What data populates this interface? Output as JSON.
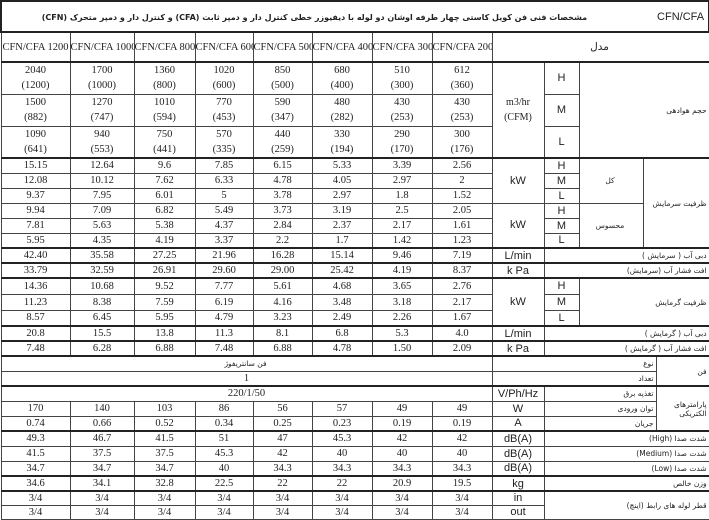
{
  "brand": "CFN/CFA",
  "title": "مشخصات فنی فن کویل کاستی چهار طرفه اوشان دو لوله با دیفیوزر خطی کنترل دار و دمپر ثابت (CFA) و کنترل دار و دمپر متحرک (CFN)",
  "model_label": "مدل",
  "models": [
    "CFN/CFA 1200",
    "CFN/CFA 1000",
    "CFN/CFA 800",
    "CFN/CFA 600",
    "CFN/CFA 500",
    "CFN/CFA 400",
    "CFN/CFA 300",
    "CFN/CFA 200"
  ],
  "levels": [
    "H",
    "M",
    "L"
  ],
  "airflow": {
    "label": "حجم هوادهی",
    "unit": "m3/hr\n(CFM)",
    "rows": [
      [
        "2040\n(1200)",
        "1700\n(1000)",
        "1360\n(800)",
        "1020\n(600)",
        "850\n(500)",
        "680\n(400)",
        "510\n(300)",
        "612\n(360)"
      ],
      [
        "1500\n(882)",
        "1270\n(747)",
        "1010\n(594)",
        "770\n(453)",
        "590\n(347)",
        "480\n(282)",
        "430\n(253)",
        "430\n(253)"
      ],
      [
        "1090\n(641)",
        "940\n(553)",
        "750\n(441)",
        "570\n(335)",
        "440\n(259)",
        "330\n(194)",
        "290\n(170)",
        "300\n(176)"
      ]
    ]
  },
  "cooling": {
    "label": "ظرفیت سرمایش",
    "total": {
      "label": "کل",
      "unit": "kW",
      "rows": [
        [
          "15.15",
          "12.64",
          "9.6",
          "7.85",
          "6.15",
          "5.33",
          "3.39",
          "2.56"
        ],
        [
          "12.08",
          "10.12",
          "7.62",
          "6.33",
          "4.78",
          "4.05",
          "2.97",
          "2"
        ],
        [
          "9.37",
          "7.95",
          "6.01",
          "5",
          "3.78",
          "2.97",
          "1.8",
          "1.52"
        ]
      ]
    },
    "sensible": {
      "label": "محسوس",
      "unit": "kW",
      "rows": [
        [
          "9.94",
          "7.09",
          "6.82",
          "5.49",
          "3.73",
          "3.19",
          "2.5",
          "2.05"
        ],
        [
          "7.81",
          "5.63",
          "5.38",
          "4.37",
          "2.84",
          "2.37",
          "2.17",
          "1.61"
        ],
        [
          "5.95",
          "4.35",
          "4.19",
          "3.37",
          "2.2",
          "1.7",
          "1.42",
          "1.23"
        ]
      ]
    }
  },
  "cooling_water_flow": {
    "label": "دبی آب ( سرمایش )",
    "unit": "L/min",
    "values": [
      "42.40",
      "35.58",
      "27.25",
      "21.96",
      "16.28",
      "15.14",
      "9.46",
      "7.19"
    ]
  },
  "cooling_pressure_drop": {
    "label": "افت فشار آب (سرمایش)",
    "unit": "k Pa",
    "values": [
      "33.79",
      "32.59",
      "26.91",
      "29.60",
      "29.00",
      "25.42",
      "4.19",
      "8.37"
    ]
  },
  "heating": {
    "label": "ظرفیت گرمایش",
    "unit": "kW",
    "rows": [
      [
        "14.36",
        "10.68",
        "9.52",
        "7.77",
        "5.61",
        "4.68",
        "3.65",
        "2.76"
      ],
      [
        "11.23",
        "8.38",
        "7.59",
        "6.19",
        "4.16",
        "3.48",
        "3.18",
        "2.17"
      ],
      [
        "8.57",
        "6.45",
        "5.95",
        "4.79",
        "3.23",
        "2.49",
        "2.26",
        "1.67"
      ]
    ]
  },
  "heating_water_flow": {
    "label": "دبی آب ( گرمایش )",
    "unit": "L/min",
    "values": [
      "20.8",
      "15.5",
      "13.8",
      "11.3",
      "8.1",
      "6.8",
      "5.3",
      "4.0"
    ]
  },
  "heating_pressure_drop": {
    "label": "افت فشار آب ( گرمایش )",
    "unit": "k Pa",
    "values": [
      "7.48",
      "6.28",
      "6.88",
      "7.48",
      "6.88",
      "4.78",
      "1.50",
      "2.09"
    ]
  },
  "fan": {
    "label": "فن",
    "type_label": "نوع",
    "type_value": "فن سانتریفوژ",
    "count_label": "تعداد",
    "count_value": "1"
  },
  "electrical": {
    "label": "پارامترهای الکتریکی",
    "supply": {
      "label": "تغذیه برق",
      "unit": "V/Ph/Hz",
      "value": "220/1/50"
    },
    "input_power": {
      "label": "توان ورودی",
      "unit": "W",
      "values": [
        "170",
        "140",
        "103",
        "86",
        "56",
        "57",
        "49",
        "49"
      ]
    },
    "current": {
      "label": "جریان",
      "unit": "A",
      "values": [
        "0.74",
        "0.66",
        "0.52",
        "0.34",
        "0.25",
        "0.23",
        "0.19",
        "0.19"
      ]
    }
  },
  "noise": [
    {
      "label": "شدت صدا (High)",
      "unit": "dB(A)",
      "values": [
        "49.3",
        "46.7",
        "41.5",
        "51",
        "47",
        "45.3",
        "42",
        "42"
      ]
    },
    {
      "label": "شدت صدا (Medium)",
      "unit": "dB(A)",
      "values": [
        "41.5",
        "37.5",
        "37.5",
        "45.3",
        "42",
        "40",
        "40",
        "40"
      ]
    },
    {
      "label": "شدت صدا (Low)",
      "unit": "dB(A)",
      "values": [
        "34.7",
        "34.7",
        "34.7",
        "40",
        "34.3",
        "34.3",
        "34.3",
        "34.3"
      ]
    }
  ],
  "weight": {
    "label": "وزن خالص",
    "unit": "kg",
    "values": [
      "34.6",
      "34.1",
      "32.8",
      "22.5",
      "22",
      "22",
      "20.9",
      "19.5"
    ]
  },
  "pipes": {
    "label": "قطر لوله های رابط (اینچ)",
    "rows": [
      {
        "unit": "in",
        "values": [
          "3/4",
          "3/4",
          "3/4",
          "3/4",
          "3/4",
          "3/4",
          "3/4",
          "3/4"
        ]
      },
      {
        "unit": "out",
        "values": [
          "3/4",
          "3/4",
          "3/4",
          "3/4",
          "3/4",
          "3/4",
          "3/4",
          "3/4"
        ]
      }
    ]
  }
}
